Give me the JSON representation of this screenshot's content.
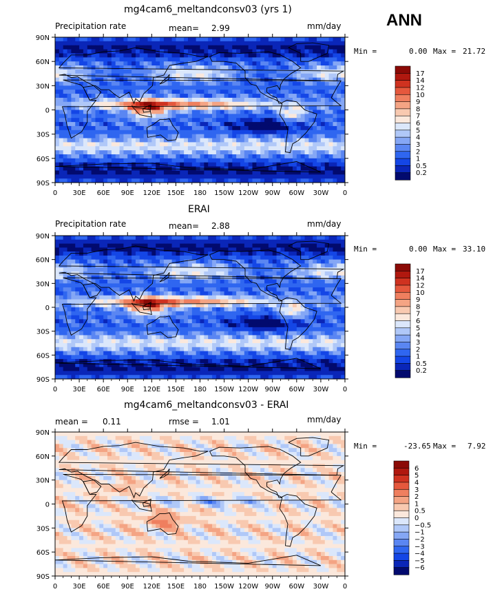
{
  "season": "ANN",
  "palettes": {
    "precip": [
      "#020a6e",
      "#0a26b8",
      "#1446e6",
      "#2f66f0",
      "#5a86f2",
      "#85a7f5",
      "#b0c8f8",
      "#dbe7fb",
      "#fbe8dc",
      "#f8c9b0",
      "#f4a484",
      "#ef7f5f",
      "#e5583d",
      "#cf3220",
      "#b0180f",
      "#8b0a06"
    ],
    "diff": [
      "#020a6e",
      "#0a26b8",
      "#1446e6",
      "#2f66f0",
      "#5a86f2",
      "#85a7f5",
      "#b0c8f8",
      "#dbe7fb",
      "#fbe8dc",
      "#f8c9b0",
      "#f4a484",
      "#ef7f5f",
      "#e5583d",
      "#cf3220",
      "#b0180f",
      "#8b0a06"
    ]
  },
  "chart_data": [
    {
      "type": "heatmap",
      "title": "mg4cam6_meltandconsv03 (yrs 1)",
      "left_label": "Precipitation rate",
      "mean_label": "mean=",
      "mean_value": "2.99",
      "units": "mm/day",
      "min_label": "Min =",
      "min_value": "0.00",
      "max_label": "Max =",
      "max_value": "21.72",
      "x_ticks": [
        "0",
        "30E",
        "60E",
        "90E",
        "120E",
        "150E",
        "180",
        "150W",
        "120W",
        "90W",
        "60W",
        "30W",
        "0"
      ],
      "y_ticks": [
        "90N",
        "60N",
        "30N",
        "0",
        "30S",
        "60S",
        "90S"
      ],
      "colorbar_labels": [
        "17",
        "14",
        "12",
        "10",
        "9",
        "8",
        "7",
        "6",
        "5",
        "4",
        "3",
        "2",
        "1",
        "0.5",
        "0.2"
      ],
      "palette": "precip"
    },
    {
      "type": "heatmap",
      "title": "ERAI",
      "left_label": "Precipitation rate",
      "mean_label": "mean=",
      "mean_value": "2.88",
      "units": "mm/day",
      "min_label": "Min =",
      "min_value": "0.00",
      "max_label": "Max =",
      "max_value": "33.10",
      "x_ticks": [
        "0",
        "30E",
        "60E",
        "90E",
        "120E",
        "150E",
        "180",
        "150W",
        "120W",
        "90W",
        "60W",
        "30W",
        "0"
      ],
      "y_ticks": [
        "90N",
        "60N",
        "30N",
        "0",
        "30S",
        "60S",
        "90S"
      ],
      "colorbar_labels": [
        "17",
        "14",
        "12",
        "10",
        "9",
        "8",
        "7",
        "6",
        "5",
        "4",
        "3",
        "2",
        "1",
        "0.5",
        "0.2"
      ],
      "palette": "precip"
    },
    {
      "type": "heatmap",
      "title": "mg4cam6_meltandconsv03 - ERAI",
      "left_label": "mean =",
      "mean_label": "",
      "mean_value": "0.11",
      "rmse_label": "rmse =",
      "rmse_value": "1.01",
      "units": "mm/day",
      "min_label": "Min =",
      "min_value": "-23.65",
      "max_label": "Max =",
      "max_value": "7.92",
      "x_ticks": [
        "0",
        "30E",
        "60E",
        "90E",
        "120E",
        "150E",
        "180",
        "150W",
        "120W",
        "90W",
        "60W",
        "30W",
        "0"
      ],
      "y_ticks": [
        "90N",
        "60N",
        "30N",
        "0",
        "30S",
        "60S",
        "90S"
      ],
      "colorbar_labels": [
        "6",
        "5",
        "4",
        "3",
        "2",
        "1",
        "0.5",
        "0",
        "−0.5",
        "−1",
        "−2",
        "−3",
        "−4",
        "−5",
        "−6"
      ],
      "palette": "diff"
    }
  ]
}
